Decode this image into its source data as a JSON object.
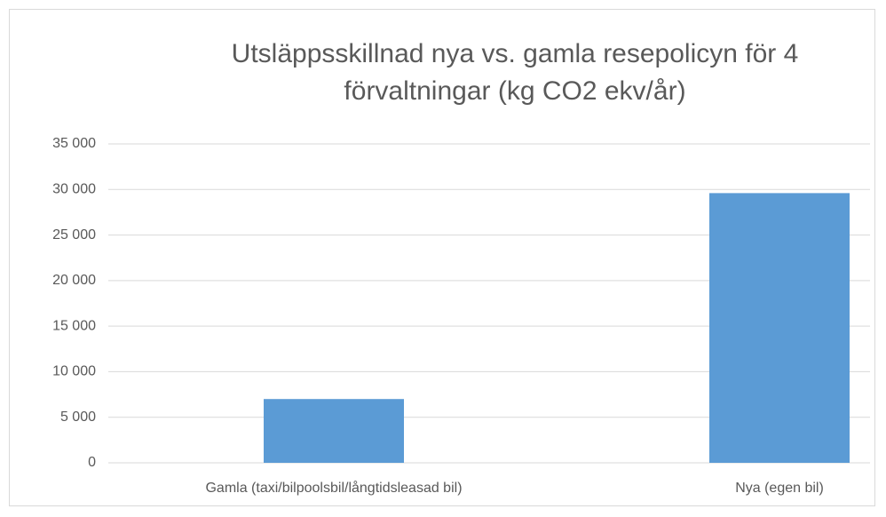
{
  "chart_data": {
    "type": "bar",
    "title": "Utsläppsskillnad nya vs. gamla resepolicyn för 4 förvaltningar (kg CO2 ekv/år)",
    "categories": [
      "Gamla (taxi/bilpoolsbil/långtidsleasad bil)",
      "Nya (egen bil)"
    ],
    "values": [
      7000,
      29600
    ],
    "color": "#5b9bd5",
    "ylim": [
      0,
      35000
    ],
    "yticks": [
      0,
      {
        "value": 5000,
        "label": "5 000"
      },
      {
        "value": 10000,
        "label": "10 000"
      },
      {
        "value": 15000,
        "label": "15 000"
      },
      {
        "value": 20000,
        "label": "20 000"
      },
      {
        "value": 25000,
        "label": "25 000"
      },
      {
        "value": 30000,
        "label": "30 000"
      },
      {
        "value": 35000,
        "label": "35 000"
      }
    ],
    "grid": true
  }
}
